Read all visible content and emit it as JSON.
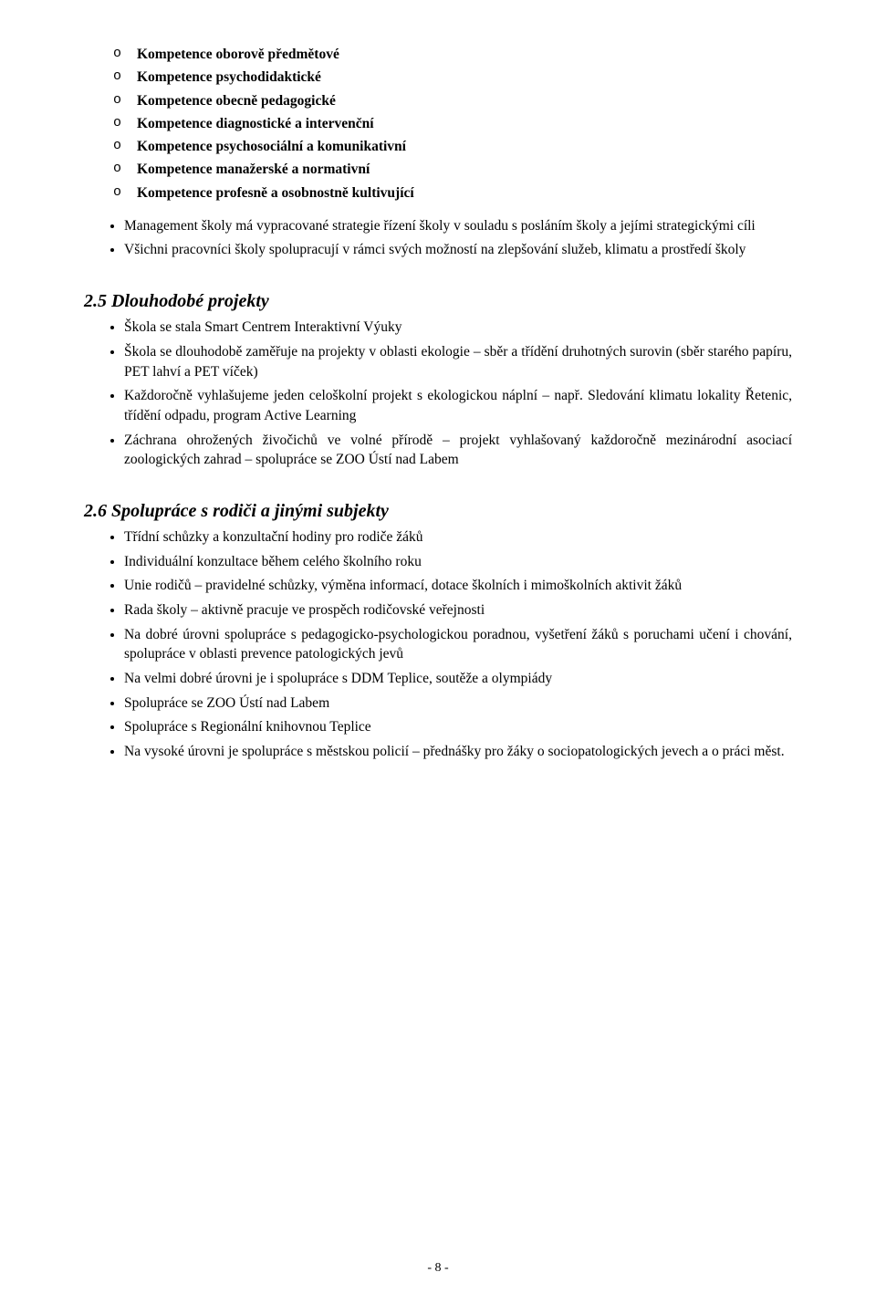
{
  "competences": [
    "Kompetence oborově předmětové",
    "Kompetence psychodidaktické",
    "Kompetence obecně pedagogické",
    "Kompetence diagnostické a intervenční",
    "Kompetence psychosociální a komunikativní",
    "Kompetence manažerské a normativní",
    "Kompetence profesně a osobnostně kultivující"
  ],
  "intro_bullets": [
    "Management školy má vypracované strategie řízení školy v souladu s posláním školy a jejími strategickými cíli",
    "Všichni pracovníci školy spolupracují v rámci svých možností na zlepšování služeb, klimatu a prostředí školy"
  ],
  "sec25": {
    "heading": "2.5   Dlouhodobé projekty",
    "items": [
      "Škola se stala Smart Centrem Interaktivní Výuky",
      "Škola se dlouhodobě zaměřuje na projekty v oblasti ekologie – sběr a třídění druhotných surovin (sběr starého papíru, PET lahví a PET víček)",
      "Každoročně vyhlašujeme jeden celoškolní projekt s ekologickou náplní – např. Sledování klimatu lokality Řetenic, třídění odpadu, program Active Learning",
      "Záchrana ohrožených živočichů ve volné přírodě – projekt vyhlašovaný každoročně mezinárodní asociací zoologických zahrad – spolupráce se ZOO Ústí nad Labem"
    ]
  },
  "sec26": {
    "heading": "2.6   Spolupráce s rodiči a jinými subjekty",
    "items": [
      "Třídní schůzky a konzultační hodiny pro rodiče žáků",
      "Individuální konzultace během celého školního roku",
      "Unie rodičů – pravidelné schůzky, výměna informací, dotace školních i mimoškolních aktivit žáků",
      "Rada školy – aktivně pracuje ve prospěch rodičovské veřejnosti",
      "Na dobré úrovni spolupráce s pedagogicko-psychologickou poradnou, vyšetření žáků s poruchami učení i chování, spolupráce v oblasti prevence patologických jevů",
      "Na velmi dobré úrovni je i spolupráce s DDM Teplice, soutěže a olympiády",
      "Spolupráce se ZOO Ústí nad Labem",
      "Spolupráce s Regionální knihovnou Teplice",
      "Na vysoké úrovni  je spolupráce s městskou policií – přednášky pro žáky o sociopatologických jevech a o práci měst."
    ]
  },
  "page_number": "- 8 -"
}
